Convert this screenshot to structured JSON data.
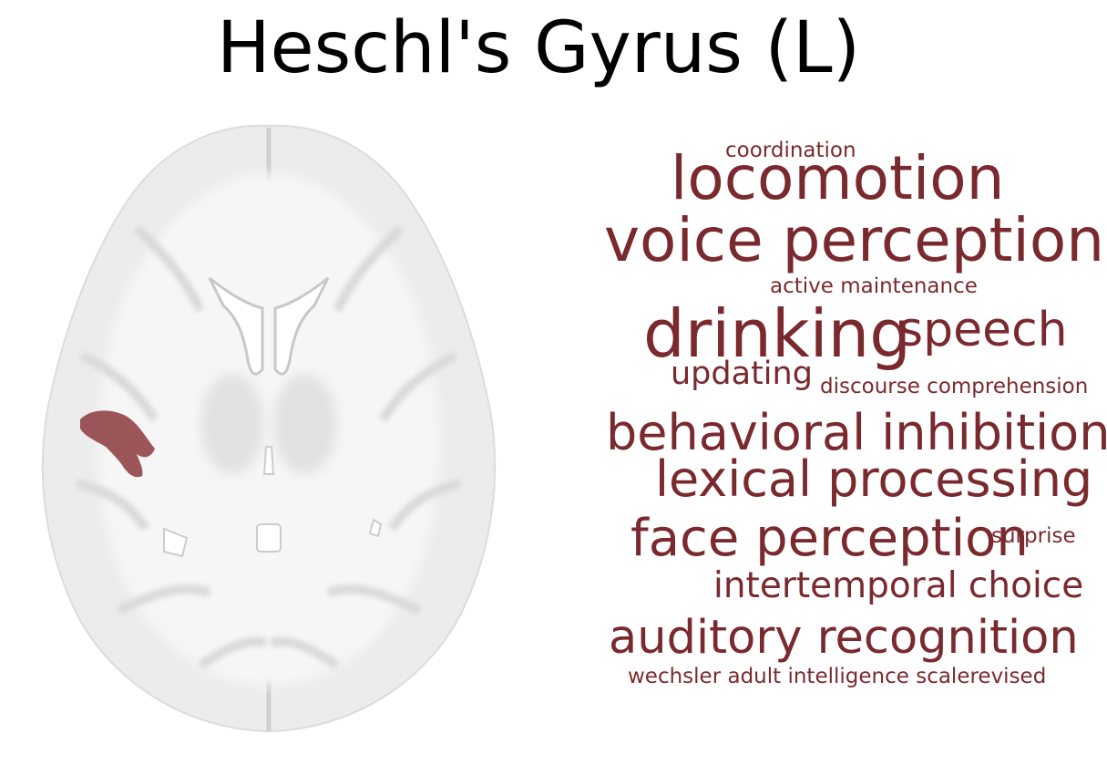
{
  "figure": {
    "title": "Heschl's Gyrus (L)",
    "region_color": "#8c3a3e",
    "word_color": "#7a2a2e"
  },
  "word_cloud": [
    "coordination",
    "locomotion",
    "voice perception",
    "active maintenance",
    "drinking",
    "speech",
    "updating",
    "discourse comprehension",
    "behavioral inhibition",
    "lexical processing",
    "face perception",
    "surprise",
    "intertemporal choice",
    "auditory recognition",
    "wechsler adult intelligence scalerevised"
  ]
}
